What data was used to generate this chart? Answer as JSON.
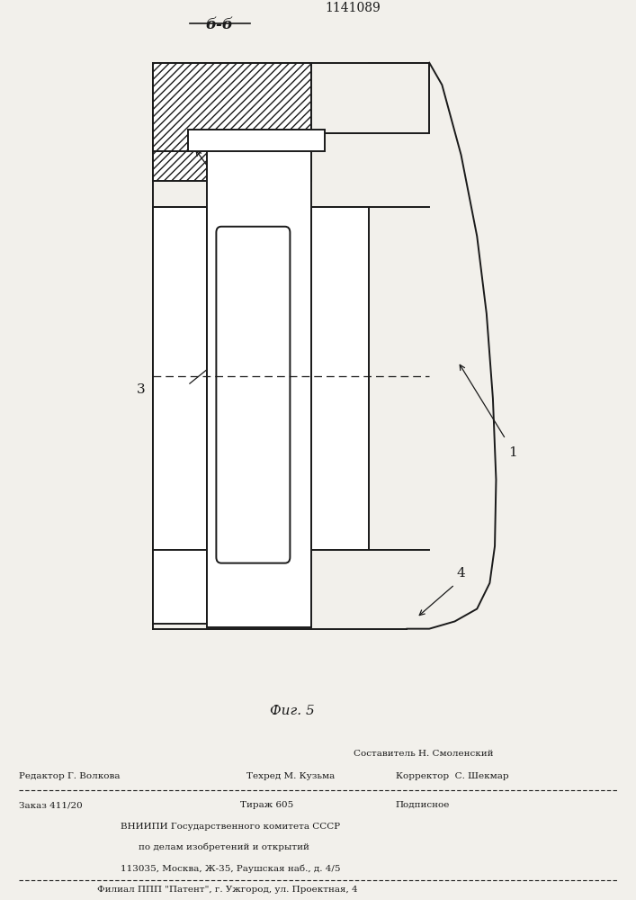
{
  "patent_number": "1141089",
  "section_label": "б-б",
  "fig_label": "Фиг.5",
  "bg_color": "#f2f0eb",
  "line_color": "#1a1a1a"
}
